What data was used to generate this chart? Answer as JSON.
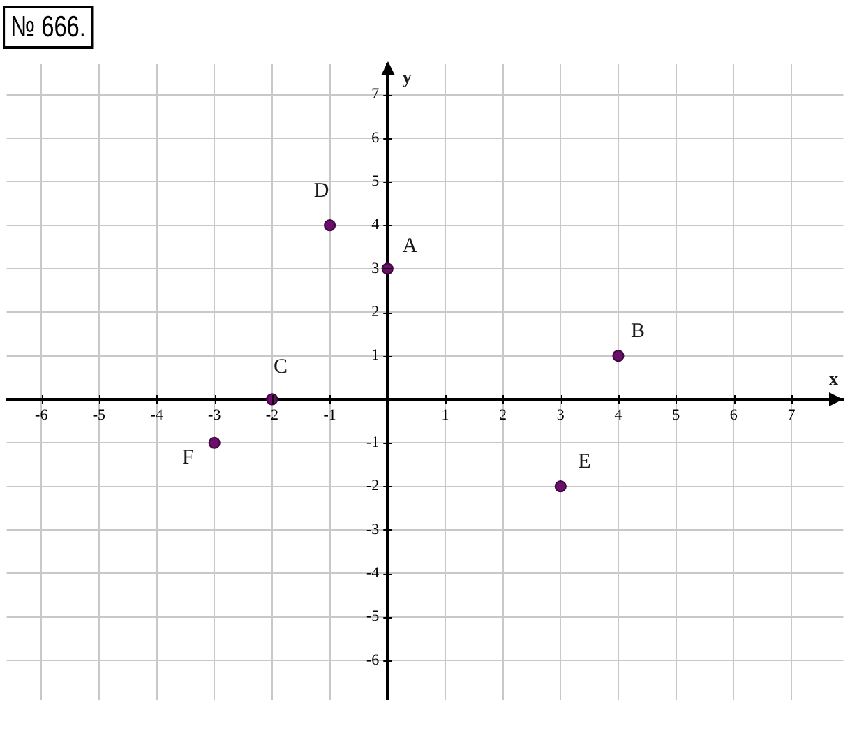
{
  "chart_data": {
    "type": "scatter",
    "title": "№ 666.",
    "xlabel": "x",
    "ylabel": "y",
    "x": [
      0,
      4,
      -2,
      -1,
      3,
      -3
    ],
    "values": [
      3,
      1,
      0,
      4,
      -2,
      -1
    ],
    "color": "#6b0f6b",
    "marker": "circle",
    "annotations": [
      {
        "text": "A",
        "x": 0,
        "y": 3
      },
      {
        "text": "B",
        "x": 4,
        "y": 1
      },
      {
        "text": "C",
        "x": -2,
        "y": 0
      },
      {
        "text": "D",
        "x": -1,
        "y": 4
      },
      {
        "text": "E",
        "x": 3,
        "y": -2
      },
      {
        "text": "F",
        "x": -3,
        "y": -1
      }
    ],
    "xlim": [
      -6.6,
      7.9
    ],
    "ylim": [
      -6.9,
      7.7
    ],
    "xticks": [
      -6,
      -5,
      -4,
      -3,
      -2,
      -1,
      1,
      2,
      3,
      4,
      5,
      6,
      7
    ],
    "yticks": [
      -6,
      -5,
      -4,
      -3,
      -2,
      -1,
      1,
      2,
      3,
      4,
      5,
      6,
      7
    ],
    "grid": true
  }
}
